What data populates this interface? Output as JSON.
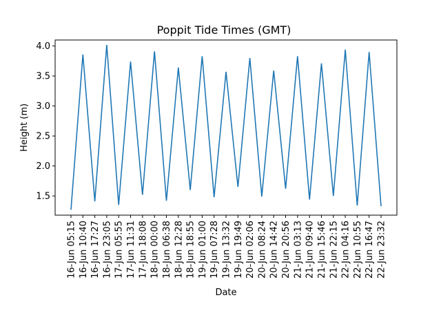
{
  "chart_data": {
    "type": "line",
    "title": "Poppit Tide Times (GMT)",
    "xlabel": "Date",
    "ylabel": "Height (m)",
    "ylim": [
      1.18,
      4.1
    ],
    "yticks": [
      1.5,
      2.0,
      2.5,
      3.0,
      3.5,
      4.0
    ],
    "ytick_labels": [
      "1.5",
      "2.0",
      "2.5",
      "3.0",
      "3.5",
      "4.0"
    ],
    "grid": false,
    "legend": "none",
    "line_color": "#1f77b4",
    "x": [
      "16-Jun 05:15",
      "16-Jun 10:40",
      "16-Jun 17:27",
      "16-Jun 23:05",
      "17-Jun 05:55",
      "17-Jun 11:31",
      "17-Jun 18:08",
      "18-Jun 00:00",
      "18-Jun 06:38",
      "18-Jun 12:28",
      "18-Jun 18:55",
      "19-Jun 01:00",
      "19-Jun 07:28",
      "19-Jun 13:32",
      "19-Jun 19:49",
      "20-Jun 02:06",
      "20-Jun 08:24",
      "20-Jun 14:42",
      "20-Jun 20:56",
      "21-Jun 03:13",
      "21-Jun 09:40",
      "21-Jun 15:46",
      "21-Jun 22:15",
      "22-Jun 04:16",
      "22-Jun 10:55",
      "22-Jun 16:47",
      "22-Jun 23:32"
    ],
    "series": [
      {
        "values": [
          1.27,
          3.86,
          1.41,
          4.02,
          1.35,
          3.74,
          1.52,
          3.91,
          1.42,
          3.64,
          1.6,
          3.83,
          1.48,
          3.57,
          1.65,
          3.8,
          1.49,
          3.59,
          1.62,
          3.83,
          1.44,
          3.71,
          1.5,
          3.94,
          1.34,
          3.9,
          1.33
        ]
      }
    ]
  }
}
